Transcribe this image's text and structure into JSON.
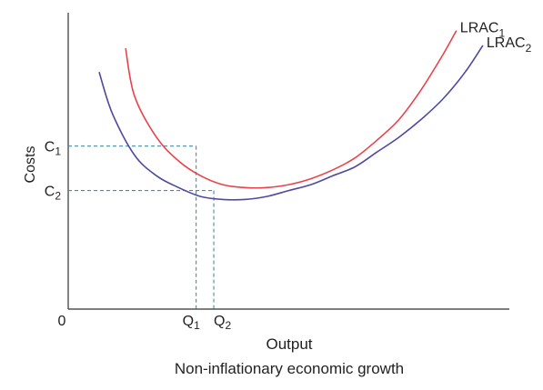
{
  "chart_data": {
    "type": "line",
    "title": "",
    "subtitle": "",
    "caption": "Non-inflationary economic growth",
    "xlabel": "Output",
    "ylabel": "Costs",
    "origin_label": "0",
    "grid": false,
    "legend": "none",
    "xlim": [
      0,
      100
    ],
    "ylim": [
      0,
      100
    ],
    "series": [
      {
        "name": "LRAC",
        "subscript": "1",
        "color": "#e8434b",
        "x": [
          13,
          15,
          20,
          25,
          30,
          35,
          40,
          45,
          50,
          55,
          60,
          65,
          70,
          75,
          80,
          85,
          88
        ],
        "y": [
          88,
          72,
          58,
          50,
          45,
          42,
          41,
          41,
          42,
          44,
          47,
          51,
          57,
          64,
          74,
          86,
          94
        ]
      },
      {
        "name": "LRAC",
        "subscript": "2",
        "color": "#4d4a9f",
        "x": [
          7,
          10,
          15,
          20,
          25,
          30,
          35,
          40,
          45,
          50,
          55,
          60,
          65,
          70,
          75,
          80,
          85,
          90,
          94
        ],
        "y": [
          80,
          66,
          52,
          45,
          41,
          38,
          37,
          37,
          38,
          40,
          42,
          45,
          48,
          53,
          58,
          64,
          71,
          80,
          89
        ]
      }
    ],
    "reference_points": [
      {
        "x_label": "Q",
        "x_sub": "1",
        "x": 29.0,
        "y_label": "C",
        "y_sub": "1",
        "y": 55.0
      },
      {
        "x_label": "Q",
        "x_sub": "2",
        "x": 33.0,
        "y_label": "C",
        "y_sub": "2",
        "y": 40.0
      }
    ],
    "guide_color": "#3f8fa5"
  }
}
